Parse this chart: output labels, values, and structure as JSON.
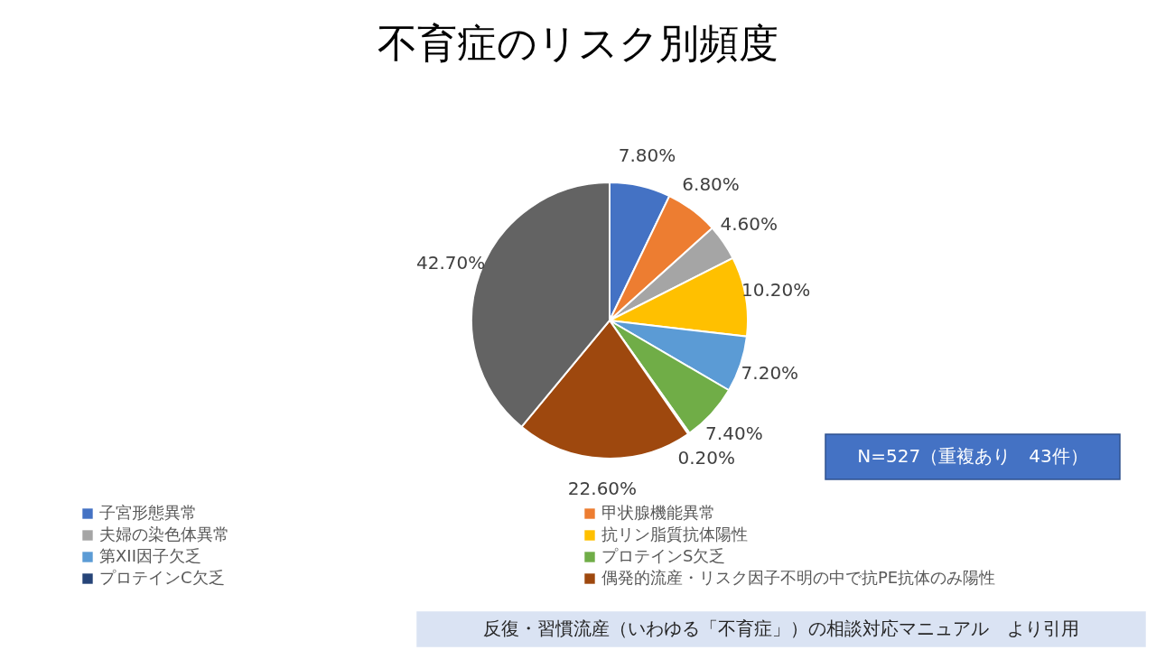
{
  "chart_data": {
    "type": "pie",
    "title": "不育症のリスク別頻度",
    "categories": [
      "子宮形態異常",
      "甲状腺機能異常",
      "夫婦の染色体異常",
      "抗リン脂質抗体陽性",
      "第XII因子欠乏",
      "プロテインS欠乏",
      "プロテインC欠乏",
      "偶発的流産・リスク因子不明の中で抗PE抗体のみ陽性",
      null
    ],
    "values": [
      7.8,
      6.8,
      4.6,
      10.2,
      7.2,
      7.4,
      0.2,
      22.6,
      42.7
    ],
    "colors": [
      "#4472c4",
      "#ed7d31",
      "#a5a5a5",
      "#ffc000",
      "#5b9bd5",
      "#70ad47",
      "#264478",
      "#9e480e",
      "#636363"
    ],
    "value_labels": [
      "7.80%",
      "6.80%",
      "4.60%",
      "10.20%",
      "7.20%",
      "7.40%",
      "0.20%",
      "22.60%",
      "42.70%"
    ],
    "legend": "bottom",
    "annotations": [
      "N=527（重複あり　43件）",
      "反復・習慣流産（いわゆる「不育症」）の相談対応マニュアル　より引用"
    ]
  }
}
